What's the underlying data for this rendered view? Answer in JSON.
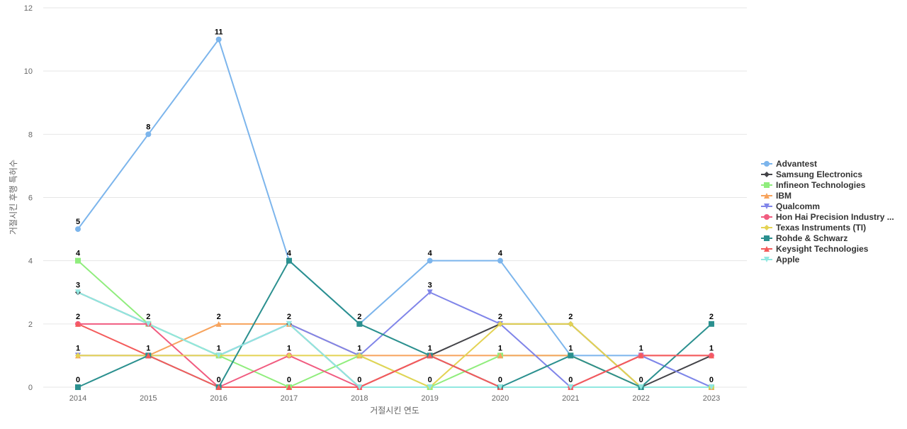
{
  "chart_data": {
    "type": "line",
    "x": [
      "2014",
      "2015",
      "2016",
      "2017",
      "2018",
      "2019",
      "2020",
      "2021",
      "2022",
      "2023"
    ],
    "xlabel": "거절시킨 연도",
    "ylabel": "거절시킨 후행 특허수",
    "ylim": [
      0,
      12
    ],
    "yticks": [
      0,
      2,
      4,
      6,
      8,
      10,
      12
    ],
    "grid": true,
    "legend_position": "right",
    "series": [
      {
        "name": "Advantest",
        "color": "#7cb5ec",
        "marker": "circle",
        "values": [
          5,
          8,
          11,
          4,
          2,
          4,
          4,
          1,
          1,
          0
        ]
      },
      {
        "name": "Samsung Electronics",
        "color": "#434348",
        "marker": "diamond",
        "values": [
          3,
          2,
          1,
          2,
          0,
          1,
          2,
          2,
          0,
          1
        ]
      },
      {
        "name": "Infineon Technologies",
        "color": "#90ed7d",
        "marker": "square",
        "values": [
          4,
          2,
          1,
          0,
          1,
          0,
          1,
          1,
          0,
          0
        ]
      },
      {
        "name": "IBM",
        "color": "#f7a35c",
        "marker": "triangle",
        "values": [
          1,
          1,
          2,
          2,
          1,
          1,
          1,
          1,
          0,
          0
        ]
      },
      {
        "name": "Qualcomm",
        "color": "#8085e9",
        "marker": "triangle-down",
        "values": [
          1,
          1,
          1,
          2,
          1,
          3,
          2,
          0,
          1,
          0
        ]
      },
      {
        "name": "Hon Hai Precision Industry ...",
        "color": "#f15c80",
        "marker": "circle",
        "values": [
          2,
          2,
          0,
          1,
          0,
          1,
          0,
          0,
          1,
          1
        ]
      },
      {
        "name": "Texas Instruments (TI)",
        "color": "#e4d354",
        "marker": "diamond",
        "values": [
          1,
          1,
          1,
          1,
          1,
          0,
          2,
          2,
          0,
          0
        ]
      },
      {
        "name": "Rohde & Schwarz",
        "color": "#2b908f",
        "marker": "square",
        "values": [
          0,
          1,
          0,
          4,
          2,
          1,
          0,
          1,
          0,
          2
        ]
      },
      {
        "name": "Keysight Technologies",
        "color": "#f45b5b",
        "marker": "triangle",
        "values": [
          2,
          1,
          0,
          0,
          0,
          1,
          0,
          0,
          1,
          1
        ]
      },
      {
        "name": "Apple",
        "color": "#91e8e1",
        "marker": "triangle-down",
        "values": [
          3,
          2,
          1,
          2,
          0,
          0,
          0,
          0,
          0,
          0
        ]
      }
    ],
    "data_labels": [
      {
        "x": "2014",
        "value": 5
      },
      {
        "x": "2014",
        "value": 4
      },
      {
        "x": "2014",
        "value": 3
      },
      {
        "x": "2014",
        "value": 2
      },
      {
        "x": "2014",
        "value": 1
      },
      {
        "x": "2014",
        "value": 0
      },
      {
        "x": "2015",
        "value": 8
      },
      {
        "x": "2015",
        "value": 2
      },
      {
        "x": "2015",
        "value": 1
      },
      {
        "x": "2016",
        "value": 11
      },
      {
        "x": "2016",
        "value": 2
      },
      {
        "x": "2016",
        "value": 1
      },
      {
        "x": "2016",
        "value": 0
      },
      {
        "x": "2017",
        "value": 4
      },
      {
        "x": "2017",
        "value": 2
      },
      {
        "x": "2017",
        "value": 1
      },
      {
        "x": "2017",
        "value": 0
      },
      {
        "x": "2018",
        "value": 2
      },
      {
        "x": "2018",
        "value": 1
      },
      {
        "x": "2018",
        "value": 0
      },
      {
        "x": "2019",
        "value": 4
      },
      {
        "x": "2019",
        "value": 3
      },
      {
        "x": "2019",
        "value": 1
      },
      {
        "x": "2019",
        "value": 0
      },
      {
        "x": "2020",
        "value": 4
      },
      {
        "x": "2020",
        "value": 2
      },
      {
        "x": "2020",
        "value": 1
      },
      {
        "x": "2020",
        "value": 0
      },
      {
        "x": "2021",
        "value": 2
      },
      {
        "x": "2021",
        "value": 1
      },
      {
        "x": "2021",
        "value": 0
      },
      {
        "x": "2022",
        "value": 1
      },
      {
        "x": "2022",
        "value": 0
      },
      {
        "x": "2023",
        "value": 2
      },
      {
        "x": "2023",
        "value": 1
      },
      {
        "x": "2023",
        "value": 0
      }
    ]
  }
}
